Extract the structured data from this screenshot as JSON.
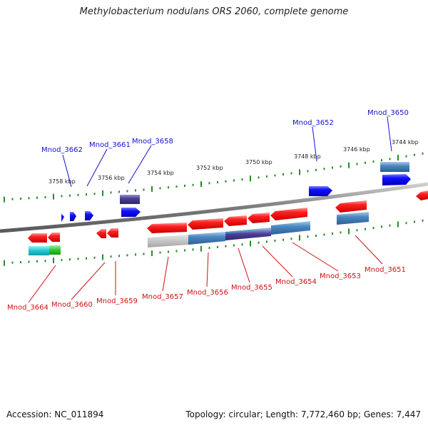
{
  "title": "Methylobacterium nodulans ORS 2060, complete genome",
  "accession": "Accession: NC_011894",
  "topology": "Topology: circular; Length: 7,772,460 bp; Genes: 7,447",
  "colors": {
    "forward_gene": "#1e1ee6",
    "reverse_gene": "#e61e1e",
    "backbone": "#8c8c8c",
    "tick": "#2a8a2a",
    "label_top": "#1111cc",
    "label_bottom": "#cc1111"
  },
  "scale_labels": [
    "3758 kbp",
    "3756 kbp",
    "3754 kbp",
    "3752 kbp",
    "3750 kbp",
    "3748 kbp",
    "3746 kbp",
    "3744 kbp"
  ],
  "top_gene_labels": [
    "Mnod_3662",
    "Mnod_3661",
    "Mnod_3658",
    "Mnod_3652",
    "Mnod_3650"
  ],
  "bottom_gene_labels": [
    "Mnod_3664",
    "Mnod_3660",
    "Mnod_3659",
    "Mnod_3657",
    "Mnod_3656",
    "Mnod_3655",
    "Mnod_3654",
    "Mnod_3653",
    "Mnod_3651"
  ]
}
